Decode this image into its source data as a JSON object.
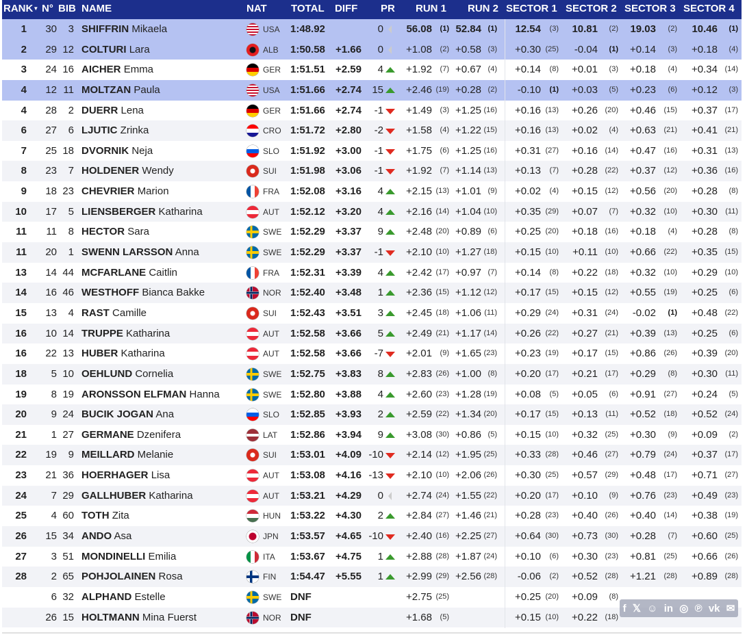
{
  "header": {
    "rank": "RANK",
    "sort_icon": "sort-down",
    "no": "N°",
    "bib": "BIB",
    "name": "NAME",
    "nat": "NAT",
    "total": "TOTAL",
    "diff": "DIFF",
    "pr": "PR",
    "run1": "RUN 1",
    "run2": "RUN 2",
    "sector1": "SECTOR 1",
    "sector2": "SECTOR 2",
    "sector3": "SECTOR 3",
    "sector4": "SECTOR 4"
  },
  "share_icons": [
    "facebook-icon",
    "x-icon",
    "reddit-icon",
    "linkedin-icon",
    "whatsapp-icon",
    "pinterest-icon",
    "vk-icon",
    "mail-icon"
  ],
  "share_glyphs": [
    "f",
    "𝕏",
    "☺",
    "in",
    "◎",
    "℗",
    "vk",
    "✉"
  ],
  "colors": {
    "header": "#1c2f8c",
    "highlight": "#b5c2f2",
    "up": "#3a9a2e",
    "down": "#e02b20"
  },
  "rows": [
    {
      "rank": "1",
      "no": "30",
      "bib": "3",
      "last": "SHIFFRIN",
      "first": "Mikaela",
      "nat": "USA",
      "total": "1:48.92",
      "diff": "",
      "pr": "0",
      "trend": "neutral",
      "r1": "56.08",
      "r1r": "(1)",
      "r2": "52.84",
      "r2r": "(1)",
      "s1": "12.54",
      "s1r": "(3)",
      "s2": "10.81",
      "s2r": "(2)",
      "s3": "19.03",
      "s3r": "(2)",
      "s4": "10.46",
      "s4r": "(1)",
      "highlight": true,
      "bold_times": true
    },
    {
      "rank": "2",
      "no": "29",
      "bib": "12",
      "last": "COLTURI",
      "first": "Lara",
      "nat": "ALB",
      "total": "1:50.58",
      "diff": "+1.66",
      "pr": "0",
      "trend": "neutral",
      "r1": "+1.08",
      "r1r": "(2)",
      "r2": "+0.58",
      "r2r": "(3)",
      "s1": "+0.30",
      "s1r": "(25)",
      "s2": "-0.04",
      "s2r": "(1)",
      "s3": "+0.14",
      "s3r": "(3)",
      "s4": "+0.18",
      "s4r": "(4)",
      "highlight": true
    },
    {
      "rank": "3",
      "no": "24",
      "bib": "16",
      "last": "AICHER",
      "first": "Emma",
      "nat": "GER",
      "total": "1:51.51",
      "diff": "+2.59",
      "pr": "4",
      "trend": "up",
      "r1": "+1.92",
      "r1r": "(7)",
      "r2": "+0.67",
      "r2r": "(4)",
      "s1": "+0.14",
      "s1r": "(8)",
      "s2": "+0.01",
      "s2r": "(3)",
      "s3": "+0.18",
      "s3r": "(4)",
      "s4": "+0.34",
      "s4r": "(14)"
    },
    {
      "rank": "4",
      "no": "12",
      "bib": "11",
      "last": "MOLTZAN",
      "first": "Paula",
      "nat": "USA",
      "total": "1:51.66",
      "diff": "+2.74",
      "pr": "15",
      "trend": "up",
      "r1": "+2.46",
      "r1r": "(19)",
      "r2": "+0.28",
      "r2r": "(2)",
      "s1": "-0.10",
      "s1r": "(1)",
      "s2": "+0.03",
      "s2r": "(5)",
      "s3": "+0.23",
      "s3r": "(6)",
      "s4": "+0.12",
      "s4r": "(3)",
      "highlight": true
    },
    {
      "rank": "4",
      "no": "28",
      "bib": "2",
      "last": "DUERR",
      "first": "Lena",
      "nat": "GER",
      "total": "1:51.66",
      "diff": "+2.74",
      "pr": "-1",
      "trend": "down",
      "r1": "+1.49",
      "r1r": "(3)",
      "r2": "+1.25",
      "r2r": "(16)",
      "s1": "+0.16",
      "s1r": "(13)",
      "s2": "+0.26",
      "s2r": "(20)",
      "s3": "+0.46",
      "s3r": "(15)",
      "s4": "+0.37",
      "s4r": "(17)"
    },
    {
      "rank": "6",
      "no": "27",
      "bib": "6",
      "last": "LJUTIC",
      "first": "Zrinka",
      "nat": "CRO",
      "total": "1:51.72",
      "diff": "+2.80",
      "pr": "-2",
      "trend": "down",
      "r1": "+1.58",
      "r1r": "(4)",
      "r2": "+1.22",
      "r2r": "(15)",
      "s1": "+0.16",
      "s1r": "(13)",
      "s2": "+0.02",
      "s2r": "(4)",
      "s3": "+0.63",
      "s3r": "(21)",
      "s4": "+0.41",
      "s4r": "(21)"
    },
    {
      "rank": "7",
      "no": "25",
      "bib": "18",
      "last": "DVORNIK",
      "first": "Neja",
      "nat": "SLO",
      "total": "1:51.92",
      "diff": "+3.00",
      "pr": "-1",
      "trend": "down",
      "r1": "+1.75",
      "r1r": "(6)",
      "r2": "+1.25",
      "r2r": "(16)",
      "s1": "+0.31",
      "s1r": "(27)",
      "s2": "+0.16",
      "s2r": "(14)",
      "s3": "+0.47",
      "s3r": "(16)",
      "s4": "+0.31",
      "s4r": "(13)"
    },
    {
      "rank": "8",
      "no": "23",
      "bib": "7",
      "last": "HOLDENER",
      "first": "Wendy",
      "nat": "SUI",
      "total": "1:51.98",
      "diff": "+3.06",
      "pr": "-1",
      "trend": "down",
      "r1": "+1.92",
      "r1r": "(7)",
      "r2": "+1.14",
      "r2r": "(13)",
      "s1": "+0.13",
      "s1r": "(7)",
      "s2": "+0.28",
      "s2r": "(22)",
      "s3": "+0.37",
      "s3r": "(12)",
      "s4": "+0.36",
      "s4r": "(16)"
    },
    {
      "rank": "9",
      "no": "18",
      "bib": "23",
      "last": "CHEVRIER",
      "first": "Marion",
      "nat": "FRA",
      "total": "1:52.08",
      "diff": "+3.16",
      "pr": "4",
      "trend": "up",
      "r1": "+2.15",
      "r1r": "(13)",
      "r2": "+1.01",
      "r2r": "(9)",
      "s1": "+0.02",
      "s1r": "(4)",
      "s2": "+0.15",
      "s2r": "(12)",
      "s3": "+0.56",
      "s3r": "(20)",
      "s4": "+0.28",
      "s4r": "(8)"
    },
    {
      "rank": "10",
      "no": "17",
      "bib": "5",
      "last": "LIENSBERGER",
      "first": "Katharina",
      "nat": "AUT",
      "total": "1:52.12",
      "diff": "+3.20",
      "pr": "4",
      "trend": "up",
      "r1": "+2.16",
      "r1r": "(14)",
      "r2": "+1.04",
      "r2r": "(10)",
      "s1": "+0.35",
      "s1r": "(29)",
      "s2": "+0.07",
      "s2r": "(7)",
      "s3": "+0.32",
      "s3r": "(10)",
      "s4": "+0.30",
      "s4r": "(11)"
    },
    {
      "rank": "11",
      "no": "11",
      "bib": "8",
      "last": "HECTOR",
      "first": "Sara",
      "nat": "SWE",
      "total": "1:52.29",
      "diff": "+3.37",
      "pr": "9",
      "trend": "up",
      "r1": "+2.48",
      "r1r": "(20)",
      "r2": "+0.89",
      "r2r": "(6)",
      "s1": "+0.25",
      "s1r": "(20)",
      "s2": "+0.18",
      "s2r": "(16)",
      "s3": "+0.18",
      "s3r": "(4)",
      "s4": "+0.28",
      "s4r": "(8)"
    },
    {
      "rank": "11",
      "no": "20",
      "bib": "1",
      "last": "SWENN LARSSON",
      "first": "Anna",
      "nat": "SWE",
      "total": "1:52.29",
      "diff": "+3.37",
      "pr": "-1",
      "trend": "down",
      "r1": "+2.10",
      "r1r": "(10)",
      "r2": "+1.27",
      "r2r": "(18)",
      "s1": "+0.15",
      "s1r": "(10)",
      "s2": "+0.11",
      "s2r": "(10)",
      "s3": "+0.66",
      "s3r": "(22)",
      "s4": "+0.35",
      "s4r": "(15)"
    },
    {
      "rank": "13",
      "no": "14",
      "bib": "44",
      "last": "MCFARLANE",
      "first": "Caitlin",
      "nat": "FRA",
      "total": "1:52.31",
      "diff": "+3.39",
      "pr": "4",
      "trend": "up",
      "r1": "+2.42",
      "r1r": "(17)",
      "r2": "+0.97",
      "r2r": "(7)",
      "s1": "+0.14",
      "s1r": "(8)",
      "s2": "+0.22",
      "s2r": "(18)",
      "s3": "+0.32",
      "s3r": "(10)",
      "s4": "+0.29",
      "s4r": "(10)"
    },
    {
      "rank": "14",
      "no": "16",
      "bib": "46",
      "last": "WESTHOFF",
      "first": "Bianca Bakke",
      "nat": "NOR",
      "total": "1:52.40",
      "diff": "+3.48",
      "pr": "1",
      "trend": "up",
      "r1": "+2.36",
      "r1r": "(15)",
      "r2": "+1.12",
      "r2r": "(12)",
      "s1": "+0.17",
      "s1r": "(15)",
      "s2": "+0.15",
      "s2r": "(12)",
      "s3": "+0.55",
      "s3r": "(19)",
      "s4": "+0.25",
      "s4r": "(6)"
    },
    {
      "rank": "15",
      "no": "13",
      "bib": "4",
      "last": "RAST",
      "first": "Camille",
      "nat": "SUI",
      "total": "1:52.43",
      "diff": "+3.51",
      "pr": "3",
      "trend": "up",
      "r1": "+2.45",
      "r1r": "(18)",
      "r2": "+1.06",
      "r2r": "(11)",
      "s1": "+0.29",
      "s1r": "(24)",
      "s2": "+0.31",
      "s2r": "(24)",
      "s3": "-0.02",
      "s3r": "(1)",
      "s4": "+0.48",
      "s4r": "(22)"
    },
    {
      "rank": "16",
      "no": "10",
      "bib": "14",
      "last": "TRUPPE",
      "first": "Katharina",
      "nat": "AUT",
      "total": "1:52.58",
      "diff": "+3.66",
      "pr": "5",
      "trend": "up",
      "r1": "+2.49",
      "r1r": "(21)",
      "r2": "+1.17",
      "r2r": "(14)",
      "s1": "+0.26",
      "s1r": "(22)",
      "s2": "+0.27",
      "s2r": "(21)",
      "s3": "+0.39",
      "s3r": "(13)",
      "s4": "+0.25",
      "s4r": "(6)"
    },
    {
      "rank": "16",
      "no": "22",
      "bib": "13",
      "last": "HUBER",
      "first": "Katharina",
      "nat": "AUT",
      "total": "1:52.58",
      "diff": "+3.66",
      "pr": "-7",
      "trend": "down",
      "r1": "+2.01",
      "r1r": "(9)",
      "r2": "+1.65",
      "r2r": "(23)",
      "s1": "+0.23",
      "s1r": "(19)",
      "s2": "+0.17",
      "s2r": "(15)",
      "s3": "+0.86",
      "s3r": "(26)",
      "s4": "+0.39",
      "s4r": "(20)"
    },
    {
      "rank": "18",
      "no": "5",
      "bib": "10",
      "last": "OEHLUND",
      "first": "Cornelia",
      "nat": "SWE",
      "total": "1:52.75",
      "diff": "+3.83",
      "pr": "8",
      "trend": "up",
      "r1": "+2.83",
      "r1r": "(26)",
      "r2": "+1.00",
      "r2r": "(8)",
      "s1": "+0.20",
      "s1r": "(17)",
      "s2": "+0.21",
      "s2r": "(17)",
      "s3": "+0.29",
      "s3r": "(8)",
      "s4": "+0.30",
      "s4r": "(11)"
    },
    {
      "rank": "19",
      "no": "8",
      "bib": "19",
      "last": "ARONSSON ELFMAN",
      "first": "Hanna",
      "nat": "SWE",
      "total": "1:52.80",
      "diff": "+3.88",
      "pr": "4",
      "trend": "up",
      "r1": "+2.60",
      "r1r": "(23)",
      "r2": "+1.28",
      "r2r": "(19)",
      "s1": "+0.08",
      "s1r": "(5)",
      "s2": "+0.05",
      "s2r": "(6)",
      "s3": "+0.91",
      "s3r": "(27)",
      "s4": "+0.24",
      "s4r": "(5)"
    },
    {
      "rank": "20",
      "no": "9",
      "bib": "24",
      "last": "BUCIK JOGAN",
      "first": "Ana",
      "nat": "SLO",
      "total": "1:52.85",
      "diff": "+3.93",
      "pr": "2",
      "trend": "up",
      "r1": "+2.59",
      "r1r": "(22)",
      "r2": "+1.34",
      "r2r": "(20)",
      "s1": "+0.17",
      "s1r": "(15)",
      "s2": "+0.13",
      "s2r": "(11)",
      "s3": "+0.52",
      "s3r": "(18)",
      "s4": "+0.52",
      "s4r": "(24)"
    },
    {
      "rank": "21",
      "no": "1",
      "bib": "27",
      "last": "GERMANE",
      "first": "Dzenifera",
      "nat": "LAT",
      "total": "1:52.86",
      "diff": "+3.94",
      "pr": "9",
      "trend": "up",
      "r1": "+3.08",
      "r1r": "(30)",
      "r2": "+0.86",
      "r2r": "(5)",
      "s1": "+0.15",
      "s1r": "(10)",
      "s2": "+0.32",
      "s2r": "(25)",
      "s3": "+0.30",
      "s3r": "(9)",
      "s4": "+0.09",
      "s4r": "(2)"
    },
    {
      "rank": "22",
      "no": "19",
      "bib": "9",
      "last": "MEILLARD",
      "first": "Melanie",
      "nat": "SUI",
      "total": "1:53.01",
      "diff": "+4.09",
      "pr": "-10",
      "trend": "down",
      "r1": "+2.14",
      "r1r": "(12)",
      "r2": "+1.95",
      "r2r": "(25)",
      "s1": "+0.33",
      "s1r": "(28)",
      "s2": "+0.46",
      "s2r": "(27)",
      "s3": "+0.79",
      "s3r": "(24)",
      "s4": "+0.37",
      "s4r": "(17)"
    },
    {
      "rank": "23",
      "no": "21",
      "bib": "36",
      "last": "HOERHAGER",
      "first": "Lisa",
      "nat": "AUT",
      "total": "1:53.08",
      "diff": "+4.16",
      "pr": "-13",
      "trend": "down",
      "r1": "+2.10",
      "r1r": "(10)",
      "r2": "+2.06",
      "r2r": "(26)",
      "s1": "+0.30",
      "s1r": "(25)",
      "s2": "+0.57",
      "s2r": "(29)",
      "s3": "+0.48",
      "s3r": "(17)",
      "s4": "+0.71",
      "s4r": "(27)"
    },
    {
      "rank": "24",
      "no": "7",
      "bib": "29",
      "last": "GALLHUBER",
      "first": "Katharina",
      "nat": "AUT",
      "total": "1:53.21",
      "diff": "+4.29",
      "pr": "0",
      "trend": "neutral",
      "r1": "+2.74",
      "r1r": "(24)",
      "r2": "+1.55",
      "r2r": "(22)",
      "s1": "+0.20",
      "s1r": "(17)",
      "s2": "+0.10",
      "s2r": "(9)",
      "s3": "+0.76",
      "s3r": "(23)",
      "s4": "+0.49",
      "s4r": "(23)"
    },
    {
      "rank": "25",
      "no": "4",
      "bib": "60",
      "last": "TOTH",
      "first": "Zita",
      "nat": "HUN",
      "total": "1:53.22",
      "diff": "+4.30",
      "pr": "2",
      "trend": "up",
      "r1": "+2.84",
      "r1r": "(27)",
      "r2": "+1.46",
      "r2r": "(21)",
      "s1": "+0.28",
      "s1r": "(23)",
      "s2": "+0.40",
      "s2r": "(26)",
      "s3": "+0.40",
      "s3r": "(14)",
      "s4": "+0.38",
      "s4r": "(19)"
    },
    {
      "rank": "26",
      "no": "15",
      "bib": "34",
      "last": "ANDO",
      "first": "Asa",
      "nat": "JPN",
      "total": "1:53.57",
      "diff": "+4.65",
      "pr": "-10",
      "trend": "down",
      "r1": "+2.40",
      "r1r": "(16)",
      "r2": "+2.25",
      "r2r": "(27)",
      "s1": "+0.64",
      "s1r": "(30)",
      "s2": "+0.73",
      "s2r": "(30)",
      "s3": "+0.28",
      "s3r": "(7)",
      "s4": "+0.60",
      "s4r": "(25)"
    },
    {
      "rank": "27",
      "no": "3",
      "bib": "51",
      "last": "MONDINELLI",
      "first": "Emilia",
      "nat": "ITA",
      "total": "1:53.67",
      "diff": "+4.75",
      "pr": "1",
      "trend": "up",
      "r1": "+2.88",
      "r1r": "(28)",
      "r2": "+1.87",
      "r2r": "(24)",
      "s1": "+0.10",
      "s1r": "(6)",
      "s2": "+0.30",
      "s2r": "(23)",
      "s3": "+0.81",
      "s3r": "(25)",
      "s4": "+0.66",
      "s4r": "(26)"
    },
    {
      "rank": "28",
      "no": "2",
      "bib": "65",
      "last": "POHJOLAINEN",
      "first": "Rosa",
      "nat": "FIN",
      "total": "1:54.47",
      "diff": "+5.55",
      "pr": "1",
      "trend": "up",
      "r1": "+2.99",
      "r1r": "(29)",
      "r2": "+2.56",
      "r2r": "(28)",
      "s1": "-0.06",
      "s1r": "(2)",
      "s2": "+0.52",
      "s2r": "(28)",
      "s3": "+1.21",
      "s3r": "(28)",
      "s4": "+0.89",
      "s4r": "(28)"
    },
    {
      "rank": "",
      "no": "6",
      "bib": "32",
      "last": "ALPHAND",
      "first": "Estelle",
      "nat": "SWE",
      "total": "DNF",
      "diff": "",
      "pr": "",
      "trend": "",
      "r1": "+2.75",
      "r1r": "(25)",
      "r2": "",
      "r2r": "",
      "s1": "+0.25",
      "s1r": "(20)",
      "s2": "+0.09",
      "s2r": "(8)",
      "s3": "",
      "s3r": "",
      "s4": "",
      "s4r": ""
    },
    {
      "rank": "",
      "no": "26",
      "bib": "15",
      "last": "HOLTMANN",
      "first": "Mina Fuerst",
      "nat": "NOR",
      "total": "DNF",
      "diff": "",
      "pr": "",
      "trend": "",
      "r1": "+1.68",
      "r1r": "(5)",
      "r2": "",
      "r2r": "",
      "s1": "+0.15",
      "s1r": "(10)",
      "s2": "+0.22",
      "s2r": "(18)",
      "s3": "",
      "s3r": "",
      "s4": "",
      "s4r": ""
    }
  ]
}
